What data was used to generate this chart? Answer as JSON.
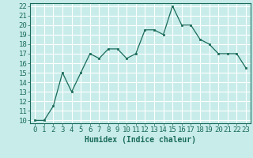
{
  "x": [
    0,
    1,
    2,
    3,
    4,
    5,
    6,
    7,
    8,
    9,
    10,
    11,
    12,
    13,
    14,
    15,
    16,
    17,
    18,
    19,
    20,
    21,
    22,
    23
  ],
  "y": [
    10.0,
    10.0,
    11.5,
    15.0,
    13.0,
    15.0,
    17.0,
    16.5,
    17.5,
    17.5,
    16.5,
    17.0,
    19.5,
    19.5,
    19.0,
    22.0,
    20.0,
    20.0,
    18.5,
    18.0,
    17.0,
    17.0,
    17.0,
    15.5
  ],
  "line_color": "#1a6b5a",
  "marker_color": "#1a6b5a",
  "bg_color": "#c8ecea",
  "grid_color": "#ffffff",
  "xlabel": "Humidex (Indice chaleur)",
  "ylim": [
    10,
    22
  ],
  "xlim": [
    -0.5,
    23.5
  ],
  "yticks": [
    10,
    11,
    12,
    13,
    14,
    15,
    16,
    17,
    18,
    19,
    20,
    21,
    22
  ],
  "xticks": [
    0,
    1,
    2,
    3,
    4,
    5,
    6,
    7,
    8,
    9,
    10,
    11,
    12,
    13,
    14,
    15,
    16,
    17,
    18,
    19,
    20,
    21,
    22,
    23
  ],
  "xlabel_fontsize": 7,
  "tick_fontsize": 6.5
}
